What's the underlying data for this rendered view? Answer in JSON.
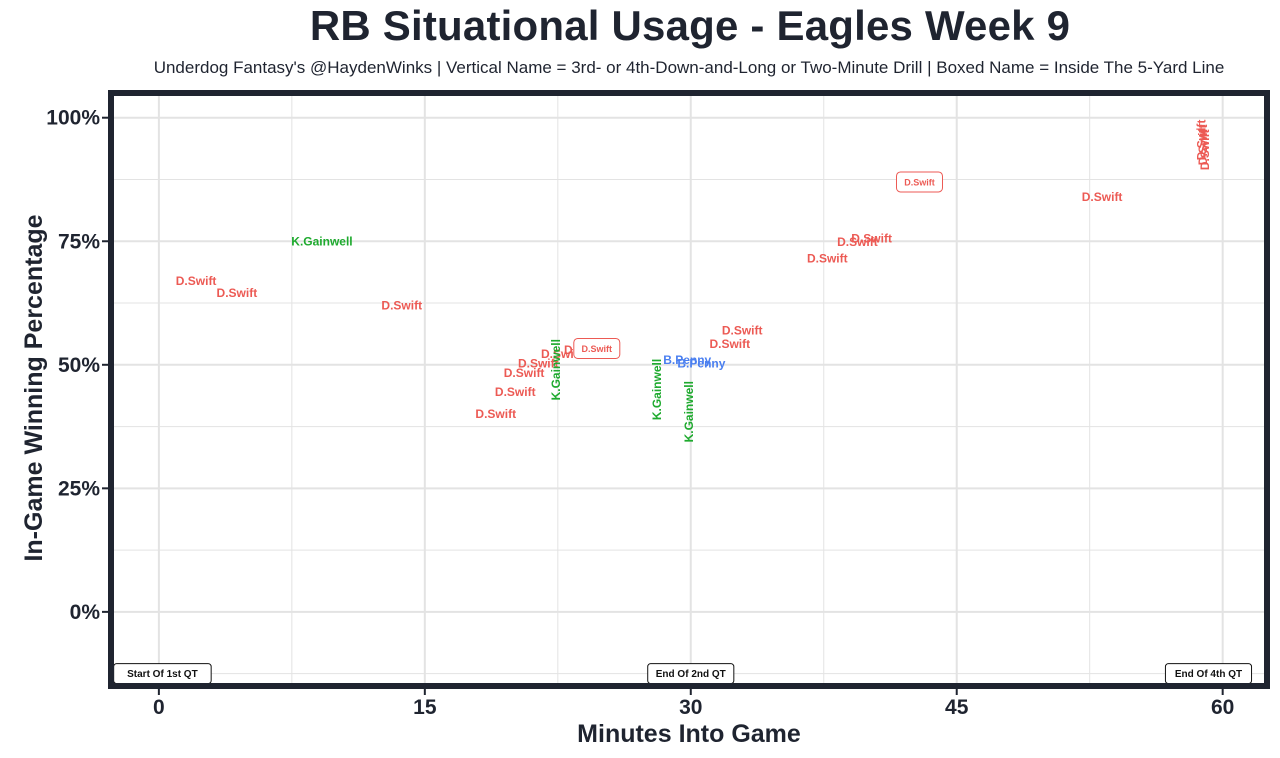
{
  "chart_data": {
    "type": "scatter",
    "title": "RB Situational Usage - Eagles Week 9",
    "subtitle": "Underdog Fantasy's @HaydenWinks | Vertical Name = 3rd- or 4th-Down-and-Long or Two-Minute Drill | Boxed Name = Inside The 5-Yard Line",
    "xlabel": "Minutes Into Game",
    "ylabel": "In-Game Winning Percentage",
    "xlim": [
      -2.7,
      62.5
    ],
    "ylim": [
      -15,
      105
    ],
    "x_ticks": [
      0,
      15,
      30,
      45,
      60
    ],
    "x_tick_labels": [
      "0",
      "15",
      "30",
      "45",
      "60"
    ],
    "y_ticks": [
      0,
      25,
      50,
      75,
      100
    ],
    "y_tick_labels": [
      "0%",
      "25%",
      "50%",
      "75%",
      "100%"
    ],
    "grid": true,
    "legend": "none",
    "colors": {
      "D.Swift": "#ec5a54",
      "K.Gainwell": "#1eaa2e",
      "B.Penny": "#4a7ff0",
      "border": "#1f2430",
      "grid": "#e3e3e3"
    },
    "quarter_labels": [
      {
        "x": 0.2,
        "label": "Start Of 1st QT"
      },
      {
        "x": 30,
        "label": "End Of 2nd QT"
      },
      {
        "x": 59.2,
        "label": "End Of 4th QT"
      }
    ],
    "points": [
      {
        "player": "D.Swift",
        "x": 2.1,
        "y": 67,
        "style": "normal"
      },
      {
        "player": "D.Swift",
        "x": 4.4,
        "y": 64.5,
        "style": "normal"
      },
      {
        "player": "K.Gainwell",
        "x": 9.2,
        "y": 75,
        "style": "normal"
      },
      {
        "player": "D.Swift",
        "x": 13.7,
        "y": 62,
        "style": "normal"
      },
      {
        "player": "D.Swift",
        "x": 19.0,
        "y": 40,
        "style": "normal"
      },
      {
        "player": "D.Swift",
        "x": 20.1,
        "y": 44.5,
        "style": "normal"
      },
      {
        "player": "D.Swift",
        "x": 20.6,
        "y": 48.3,
        "style": "normal"
      },
      {
        "player": "D.Swift",
        "x": 21.4,
        "y": 50.3,
        "style": "normal"
      },
      {
        "player": "D.Swift",
        "x": 22.7,
        "y": 52.2,
        "style": "normal"
      },
      {
        "player": "K.Gainwell",
        "x": 22.4,
        "y": 49,
        "style": "vertical"
      },
      {
        "player": "D.Swift",
        "x": 24.0,
        "y": 53,
        "style": "normal"
      },
      {
        "player": "D.Swift",
        "x": 24.7,
        "y": 53.3,
        "style": "boxed"
      },
      {
        "player": "K.Gainwell",
        "x": 28.1,
        "y": 45,
        "style": "vertical"
      },
      {
        "player": "K.Gainwell",
        "x": 29.9,
        "y": 40.5,
        "style": "vertical"
      },
      {
        "player": "B.Penny",
        "x": 29.8,
        "y": 51,
        "style": "normal"
      },
      {
        "player": "B.Penny",
        "x": 30.6,
        "y": 50.3,
        "style": "normal"
      },
      {
        "player": "D.Swift",
        "x": 32.2,
        "y": 54.2,
        "style": "normal"
      },
      {
        "player": "D.Swift",
        "x": 32.9,
        "y": 56.9,
        "style": "normal"
      },
      {
        "player": "D.Swift",
        "x": 37.7,
        "y": 71.5,
        "style": "normal"
      },
      {
        "player": "D.Swift",
        "x": 39.4,
        "y": 74.8,
        "style": "normal"
      },
      {
        "player": "D.Swift",
        "x": 40.2,
        "y": 75.6,
        "style": "normal"
      },
      {
        "player": "D.Swift",
        "x": 42.9,
        "y": 87,
        "style": "boxed"
      },
      {
        "player": "D.Swift",
        "x": 53.2,
        "y": 84,
        "style": "normal"
      },
      {
        "player": "D.Swift",
        "x": 58.8,
        "y": 95.5,
        "style": "vertical"
      },
      {
        "player": "D.Swift",
        "x": 58.9,
        "y": 94.5,
        "style": "vertical"
      },
      {
        "player": "D.Swift",
        "x": 59.0,
        "y": 93.5,
        "style": "vertical"
      }
    ]
  }
}
